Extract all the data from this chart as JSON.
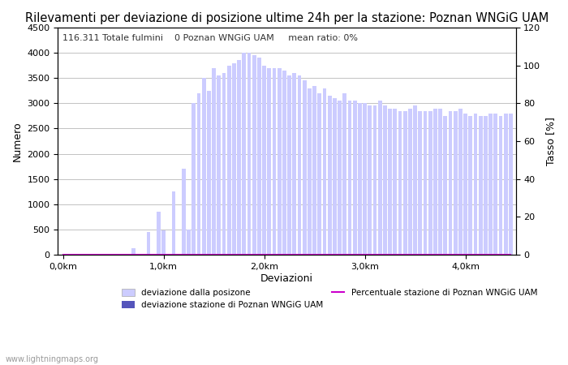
{
  "title": "Rilevamenti per deviazione di posizione ultime 24h per la stazione: Poznan WNGiG UAM",
  "subtitle": "116.311 Totale fulmini    0 Poznan WNGiG UAM     mean ratio: 0%",
  "xlabel": "Deviazioni",
  "ylabel_left": "Numero",
  "ylabel_right": "Tasso [%]",
  "watermark": "www.lightningmaps.org",
  "legend_labels": [
    "deviazione dalla posizone",
    "deviazione stazione di Poznan WNGiG UAM",
    "Percentuale stazione di Poznan WNGiG UAM"
  ],
  "xtick_labels": [
    "0,0km",
    "1,0km",
    "2,0km",
    "3,0km",
    "4,0km"
  ],
  "xtick_positions": [
    0,
    20,
    40,
    60,
    80
  ],
  "ylim_left": [
    0,
    4500
  ],
  "ylim_right": [
    0,
    120
  ],
  "yticks_left": [
    0,
    500,
    1000,
    1500,
    2000,
    2500,
    3000,
    3500,
    4000,
    4500
  ],
  "yticks_right": [
    0,
    20,
    40,
    60,
    80,
    100,
    120
  ],
  "bar_width": 0.8,
  "n_bars": 90,
  "bars_total": [
    0,
    0,
    0,
    0,
    0,
    0,
    0,
    0,
    0,
    0,
    0,
    0,
    0,
    0,
    130,
    0,
    0,
    450,
    0,
    850,
    480,
    0,
    1250,
    0,
    1700,
    500,
    3000,
    3200,
    3500,
    3250,
    3700,
    3550,
    3600,
    3750,
    3800,
    3850,
    4000,
    4000,
    3950,
    3900,
    3750,
    3700,
    3700,
    3700,
    3650,
    3550,
    3600,
    3550,
    3450,
    3300,
    3350,
    3200,
    3300,
    3150,
    3100,
    3050,
    3200,
    3050,
    3050,
    3000,
    3000,
    2950,
    2950,
    3050,
    2950,
    2900,
    2900,
    2850,
    2850,
    2900,
    2950,
    2850,
    2850,
    2850,
    2900,
    2900,
    2750,
    2850,
    2850,
    2900,
    2800,
    2750,
    2800,
    2750,
    2750,
    2800,
    2800,
    2750,
    2800,
    2800
  ],
  "bars_station": [
    0,
    0,
    0,
    0,
    0,
    0,
    0,
    0,
    0,
    0,
    0,
    0,
    0,
    0,
    0,
    0,
    0,
    0,
    0,
    0,
    0,
    0,
    0,
    0,
    0,
    0,
    0,
    0,
    0,
    0,
    0,
    0,
    0,
    0,
    0,
    0,
    0,
    0,
    0,
    0,
    0,
    0,
    0,
    0,
    0,
    0,
    0,
    0,
    0,
    0,
    0,
    0,
    0,
    0,
    0,
    0,
    0,
    0,
    0,
    0,
    0,
    0,
    0,
    0,
    0,
    0,
    0,
    0,
    0,
    0,
    0,
    0,
    0,
    0,
    0,
    0,
    0,
    0,
    0,
    0,
    0,
    0,
    0,
    0,
    0,
    0,
    0,
    0,
    0,
    0
  ],
  "pct_line": [
    0,
    0,
    0,
    0,
    0,
    0,
    0,
    0,
    0,
    0,
    0,
    0,
    0,
    0,
    0,
    0,
    0,
    0,
    0,
    0,
    0,
    0,
    0,
    0,
    0,
    0,
    0,
    0,
    0,
    0,
    0,
    0,
    0,
    0,
    0,
    0,
    0,
    0,
    0,
    0,
    0,
    0,
    0,
    0,
    0,
    0,
    0,
    0,
    0,
    0,
    0,
    0,
    0,
    0,
    0,
    0,
    0,
    0,
    0,
    0,
    0,
    0,
    0,
    0,
    0,
    0,
    0,
    0,
    0,
    0,
    0,
    0,
    0,
    0,
    0,
    0,
    0,
    0,
    0,
    0,
    0,
    0,
    0,
    0,
    0,
    0,
    0,
    0,
    0,
    0
  ],
  "bg_color": "#ffffff",
  "bar_color_total": "#ccccff",
  "bar_color_station": "#5555bb",
  "line_color_pct": "#cc00cc",
  "grid_color": "#aaaaaa",
  "title_fontsize": 10.5,
  "axis_fontsize": 9,
  "tick_fontsize": 8,
  "subtitle_fontsize": 8
}
